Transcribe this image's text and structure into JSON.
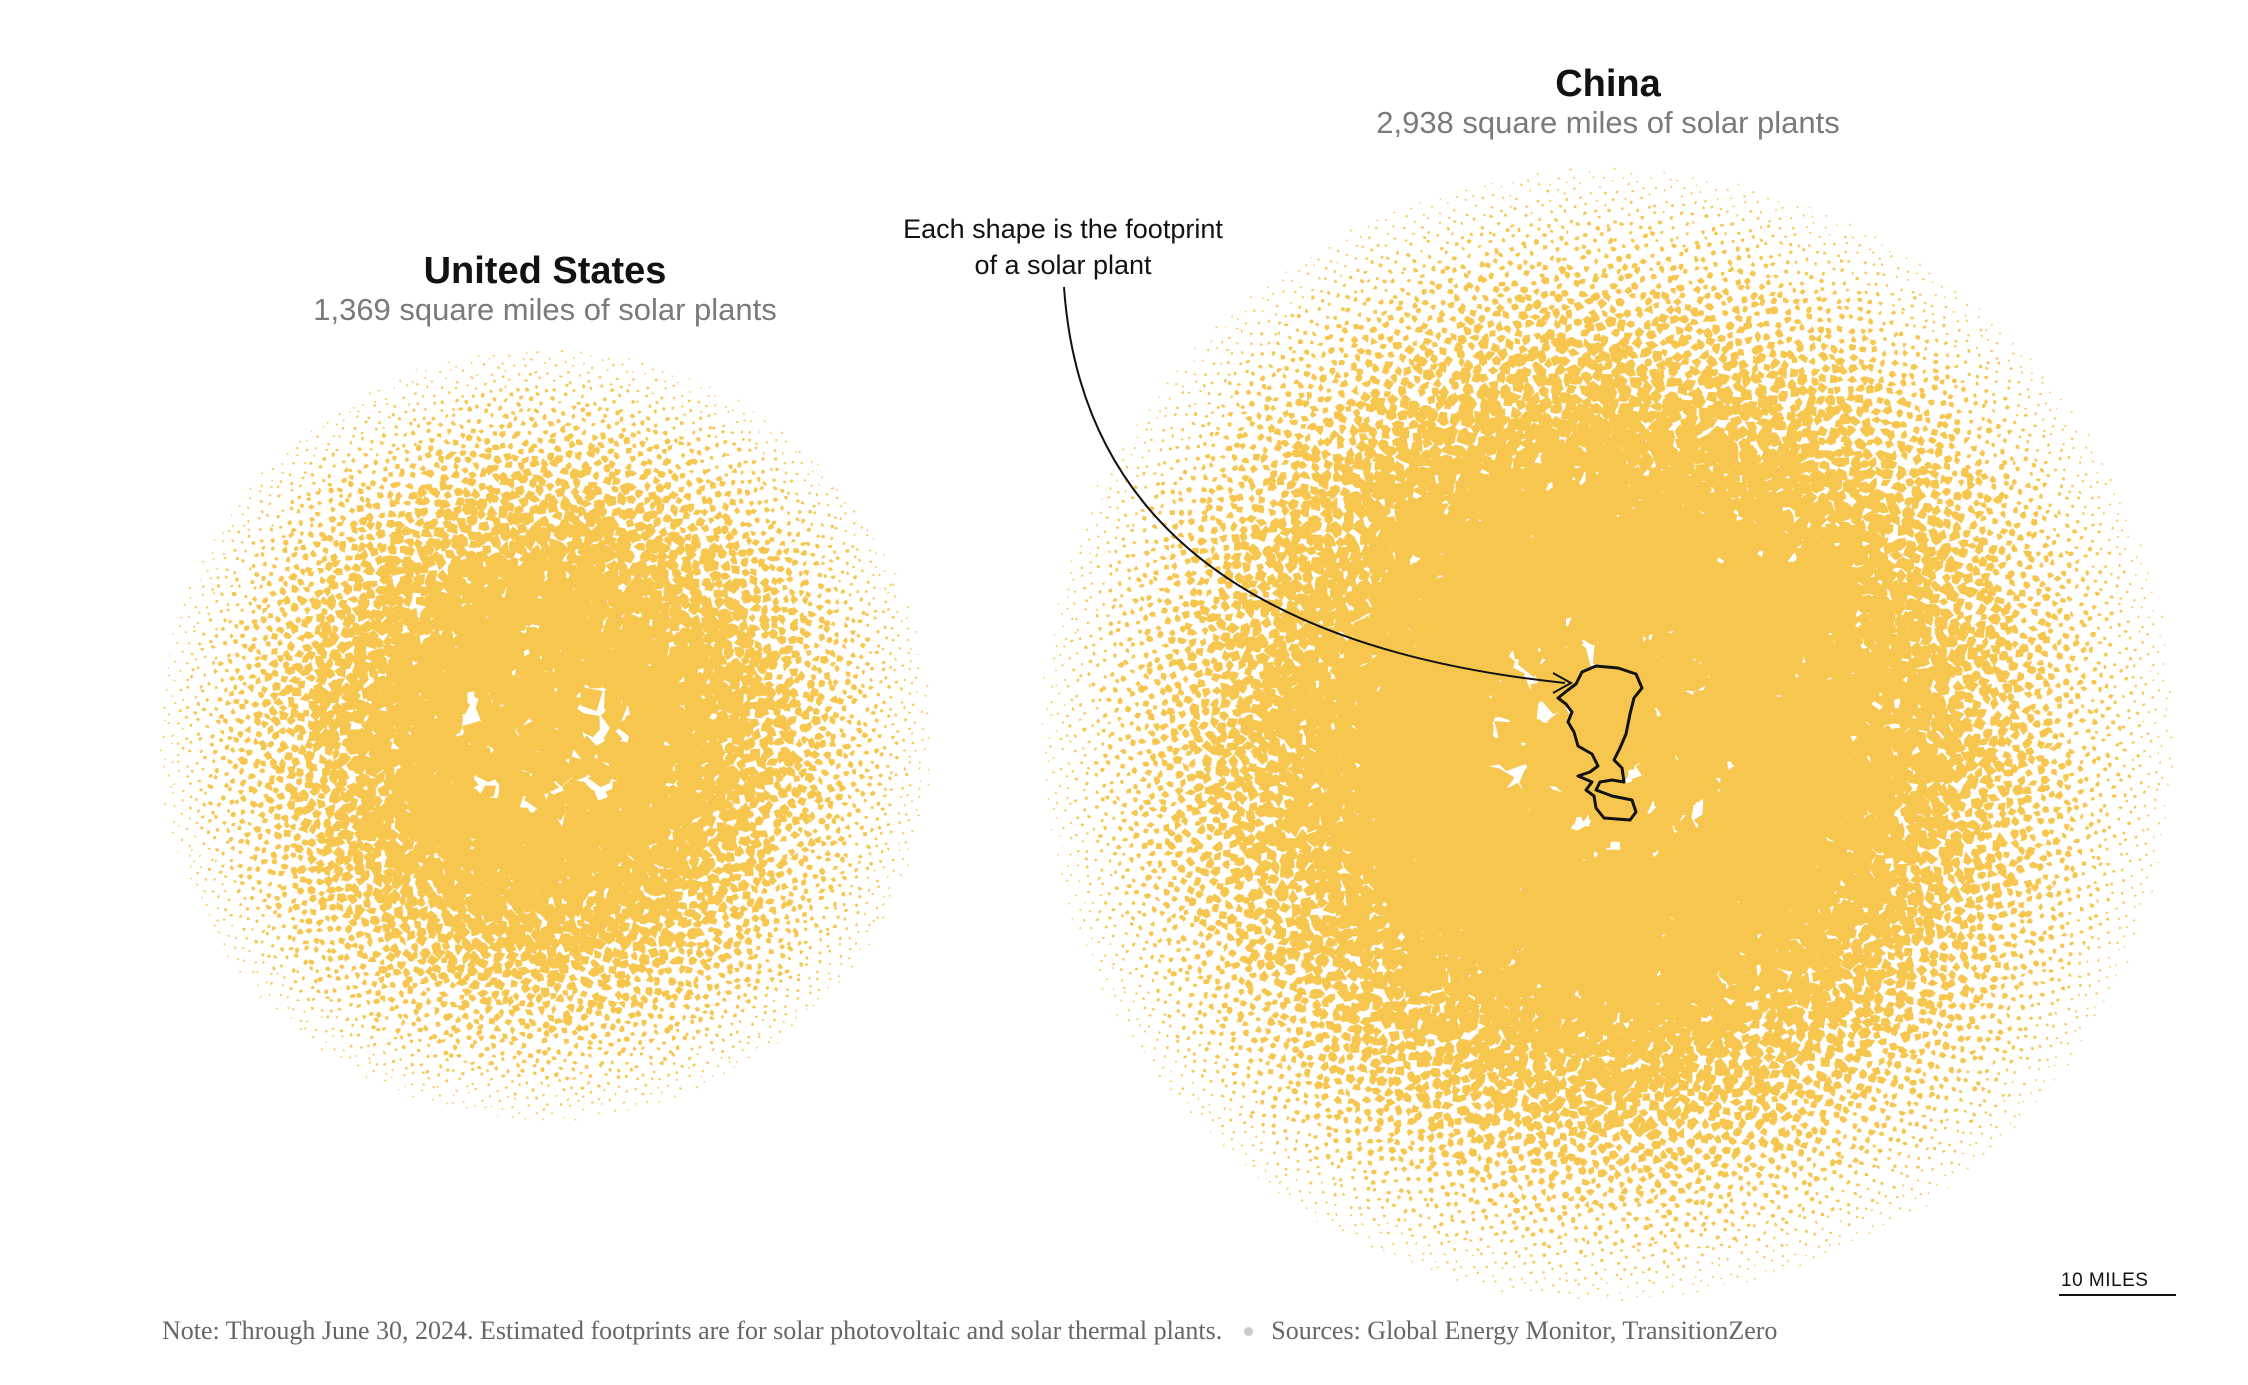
{
  "colors": {
    "plant_fill": "#f7c64e",
    "plant_stroke": "#121212",
    "title": "#121212",
    "subtitle": "#7a7a7a",
    "footer": "#666666"
  },
  "countries": [
    {
      "name": "United States",
      "subtitle": "1,369 square miles of solar plants",
      "square_miles": 1369
    },
    {
      "name": "China",
      "subtitle": "2,938 square miles of solar plants",
      "square_miles": 2938
    }
  ],
  "annotation": {
    "line1": "Each shape is the footprint",
    "line2": "of a solar plant"
  },
  "scale": {
    "label": "10 MILES",
    "miles": 10
  },
  "footer": {
    "note": "Note: Through June 30, 2024. Estimated footprints are for solar photovoltaic and solar thermal plants.",
    "sources": "Sources: Global Energy Monitor, TransitionZero"
  }
}
